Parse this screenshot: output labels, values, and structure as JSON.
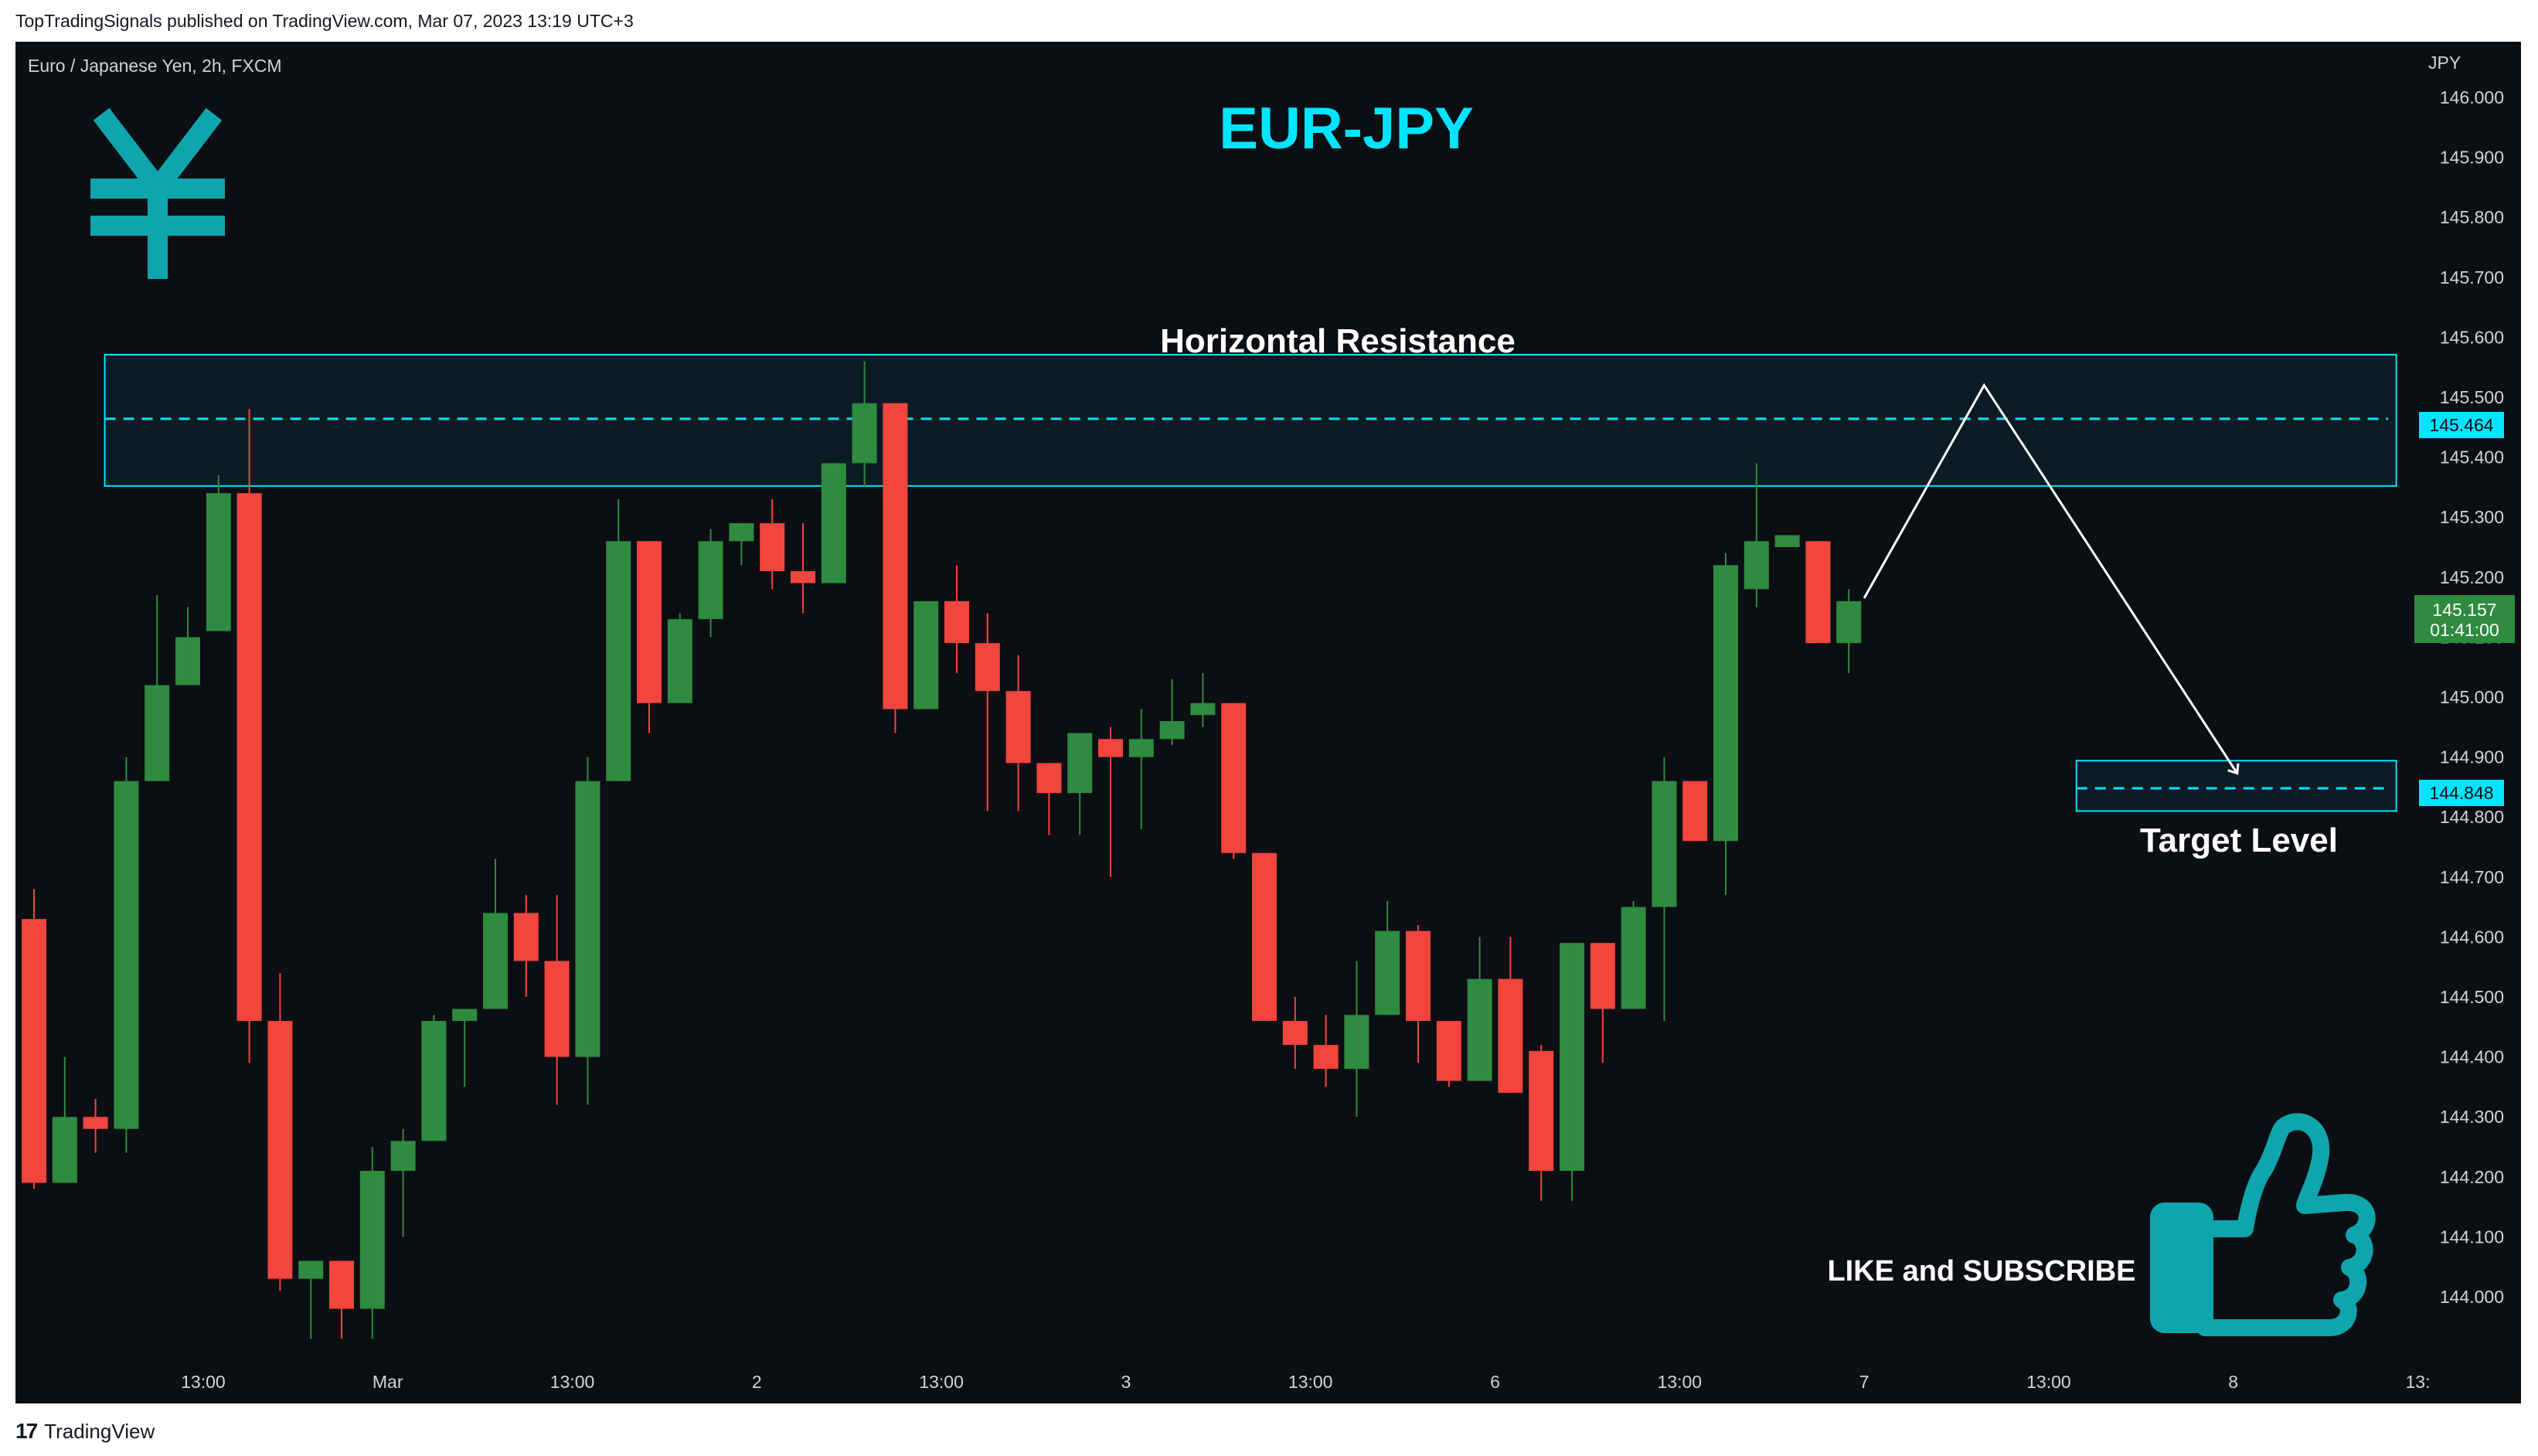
{
  "header": {
    "published": "TopTradingSignals published on TradingView.com, Mar 07, 2023 13:19 UTC+3"
  },
  "chart_info": {
    "symbol": "Euro / Japanese Yen, 2h, FXCM",
    "currency": "JPY"
  },
  "footer": {
    "logo_mark": "17",
    "brand": "TradingView"
  },
  "overlay": {
    "title": "EUR-JPY",
    "title_color": "#00e5ff",
    "yen_icon": "yen-icon",
    "icon_color": "#0fa5ad",
    "resistance_label": "Horizontal Resistance",
    "target_label": "Target Level",
    "cta_label": "LIKE and SUBSCRIBE",
    "thumb_icon": "thumbs-up-icon",
    "resistance_price_tag": "145.464",
    "target_price_tag": "144.848",
    "current_price_tag": "145.157",
    "countdown_tag": "01:41:00"
  },
  "chart_data": {
    "type": "candlestick",
    "title": "EUR-JPY",
    "ylabel": "JPY",
    "ylim": [
      143.94,
      146.05
    ],
    "y_ticks": [
      "146.000",
      "145.900",
      "145.800",
      "145.700",
      "145.600",
      "145.500",
      "145.400",
      "145.300",
      "145.200",
      "145.100",
      "145.000",
      "144.900",
      "144.800",
      "144.700",
      "144.600",
      "144.500",
      "144.400",
      "144.300",
      "144.200",
      "144.100",
      "144.000"
    ],
    "x_ticks": [
      {
        "label": "13:00",
        "bar": 5.5
      },
      {
        "label": "Mar",
        "bar": 11.5
      },
      {
        "label": "13:00",
        "bar": 17.5
      },
      {
        "label": "2",
        "bar": 23.5
      },
      {
        "label": "13:00",
        "bar": 29.5
      },
      {
        "label": "3",
        "bar": 35.5
      },
      {
        "label": "13:00",
        "bar": 41.5
      },
      {
        "label": "6",
        "bar": 47.5
      },
      {
        "label": "13:00",
        "bar": 53.5
      },
      {
        "label": "7",
        "bar": 59.5
      },
      {
        "label": "13:00",
        "bar": 65.5
      },
      {
        "label": "8",
        "bar": 71.5
      },
      {
        "label": "13:",
        "bar": 77.5
      }
    ],
    "up_color": "#2e8b3f",
    "down_color": "#f2453d",
    "candles": [
      {
        "o": 144.63,
        "h": 144.68,
        "l": 144.18,
        "c": 144.19
      },
      {
        "o": 144.19,
        "h": 144.4,
        "l": 144.19,
        "c": 144.3
      },
      {
        "o": 144.3,
        "h": 144.33,
        "l": 144.24,
        "c": 144.28
      },
      {
        "o": 144.28,
        "h": 144.9,
        "l": 144.24,
        "c": 144.86
      },
      {
        "o": 144.86,
        "h": 145.17,
        "l": 144.86,
        "c": 145.02
      },
      {
        "o": 145.02,
        "h": 145.15,
        "l": 145.02,
        "c": 145.1
      },
      {
        "o": 145.11,
        "h": 145.37,
        "l": 145.11,
        "c": 145.34
      },
      {
        "o": 145.34,
        "h": 145.48,
        "l": 144.39,
        "c": 144.46
      },
      {
        "o": 144.46,
        "h": 144.54,
        "l": 144.01,
        "c": 144.03
      },
      {
        "o": 144.03,
        "h": 144.06,
        "l": 143.93,
        "c": 144.06
      },
      {
        "o": 144.06,
        "h": 144.06,
        "l": 143.93,
        "c": 143.98
      },
      {
        "o": 143.98,
        "h": 144.25,
        "l": 143.93,
        "c": 144.21
      },
      {
        "o": 144.21,
        "h": 144.28,
        "l": 144.1,
        "c": 144.26
      },
      {
        "o": 144.26,
        "h": 144.47,
        "l": 144.26,
        "c": 144.46
      },
      {
        "o": 144.46,
        "h": 144.48,
        "l": 144.35,
        "c": 144.48
      },
      {
        "o": 144.48,
        "h": 144.73,
        "l": 144.48,
        "c": 144.64
      },
      {
        "o": 144.64,
        "h": 144.67,
        "l": 144.5,
        "c": 144.56
      },
      {
        "o": 144.56,
        "h": 144.67,
        "l": 144.32,
        "c": 144.4
      },
      {
        "o": 144.4,
        "h": 144.9,
        "l": 144.32,
        "c": 144.86
      },
      {
        "o": 144.86,
        "h": 145.33,
        "l": 144.86,
        "c": 145.26
      },
      {
        "o": 145.26,
        "h": 145.26,
        "l": 144.94,
        "c": 144.99
      },
      {
        "o": 144.99,
        "h": 145.14,
        "l": 144.99,
        "c": 145.13
      },
      {
        "o": 145.13,
        "h": 145.28,
        "l": 145.1,
        "c": 145.26
      },
      {
        "o": 145.26,
        "h": 145.29,
        "l": 145.22,
        "c": 145.29
      },
      {
        "o": 145.29,
        "h": 145.33,
        "l": 145.18,
        "c": 145.21
      },
      {
        "o": 145.21,
        "h": 145.29,
        "l": 145.14,
        "c": 145.19
      },
      {
        "o": 145.19,
        "h": 145.39,
        "l": 145.19,
        "c": 145.39
      },
      {
        "o": 145.39,
        "h": 145.56,
        "l": 145.35,
        "c": 145.49
      },
      {
        "o": 145.49,
        "h": 145.49,
        "l": 144.94,
        "c": 144.98
      },
      {
        "o": 144.98,
        "h": 145.16,
        "l": 144.98,
        "c": 145.16
      },
      {
        "o": 145.16,
        "h": 145.22,
        "l": 145.04,
        "c": 145.09
      },
      {
        "o": 145.09,
        "h": 145.14,
        "l": 144.81,
        "c": 145.01
      },
      {
        "o": 145.01,
        "h": 145.07,
        "l": 144.81,
        "c": 144.89
      },
      {
        "o": 144.89,
        "h": 144.89,
        "l": 144.77,
        "c": 144.84
      },
      {
        "o": 144.84,
        "h": 144.94,
        "l": 144.77,
        "c": 144.94
      },
      {
        "o": 144.93,
        "h": 144.95,
        "l": 144.7,
        "c": 144.9
      },
      {
        "o": 144.9,
        "h": 144.98,
        "l": 144.78,
        "c": 144.93
      },
      {
        "o": 144.93,
        "h": 145.03,
        "l": 144.92,
        "c": 144.96
      },
      {
        "o": 144.97,
        "h": 145.04,
        "l": 144.95,
        "c": 144.99
      },
      {
        "o": 144.99,
        "h": 144.99,
        "l": 144.73,
        "c": 144.74
      },
      {
        "o": 144.74,
        "h": 144.74,
        "l": 144.46,
        "c": 144.46
      },
      {
        "o": 144.46,
        "h": 144.5,
        "l": 144.38,
        "c": 144.42
      },
      {
        "o": 144.42,
        "h": 144.47,
        "l": 144.35,
        "c": 144.38
      },
      {
        "o": 144.38,
        "h": 144.56,
        "l": 144.3,
        "c": 144.47
      },
      {
        "o": 144.47,
        "h": 144.66,
        "l": 144.47,
        "c": 144.61
      },
      {
        "o": 144.61,
        "h": 144.62,
        "l": 144.39,
        "c": 144.46
      },
      {
        "o": 144.46,
        "h": 144.46,
        "l": 144.35,
        "c": 144.36
      },
      {
        "o": 144.36,
        "h": 144.6,
        "l": 144.36,
        "c": 144.53
      },
      {
        "o": 144.53,
        "h": 144.6,
        "l": 144.34,
        "c": 144.34
      },
      {
        "o": 144.41,
        "h": 144.42,
        "l": 144.16,
        "c": 144.21
      },
      {
        "o": 144.21,
        "h": 144.59,
        "l": 144.16,
        "c": 144.59
      },
      {
        "o": 144.59,
        "h": 144.59,
        "l": 144.39,
        "c": 144.48
      },
      {
        "o": 144.48,
        "h": 144.66,
        "l": 144.48,
        "c": 144.65
      },
      {
        "o": 144.65,
        "h": 144.9,
        "l": 144.46,
        "c": 144.86
      },
      {
        "o": 144.86,
        "h": 144.86,
        "l": 144.76,
        "c": 144.76
      },
      {
        "o": 144.76,
        "h": 145.24,
        "l": 144.67,
        "c": 145.22
      },
      {
        "o": 145.18,
        "h": 145.39,
        "l": 145.15,
        "c": 145.26
      },
      {
        "o": 145.25,
        "h": 145.27,
        "l": 145.25,
        "c": 145.27
      },
      {
        "o": 145.26,
        "h": 145.26,
        "l": 145.09,
        "c": 145.09
      },
      {
        "o": 145.09,
        "h": 145.18,
        "l": 145.04,
        "c": 145.16
      }
    ],
    "annotations": {
      "resistance_zone": {
        "top": 145.571,
        "bottom": 145.352,
        "from_bar": 2.3,
        "to_bar": 76.8
      },
      "resistance_level": 145.464,
      "target_zone": {
        "top": 144.894,
        "bottom": 144.81,
        "from_bar": 66.4,
        "to_bar": 76.8
      },
      "target_level": 144.848,
      "projection_path": [
        {
          "bar": 59.5,
          "price": 145.165
        },
        {
          "bar": 63.4,
          "price": 145.52
        },
        {
          "bar": 71.6,
          "price": 144.875
        }
      ]
    }
  }
}
